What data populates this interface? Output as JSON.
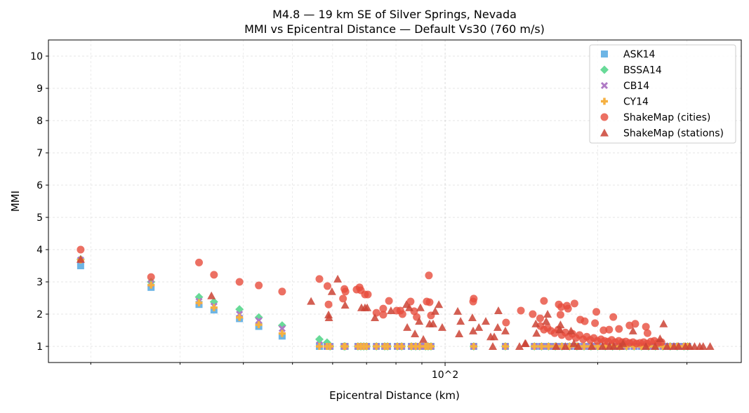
{
  "chart_data": {
    "type": "scatter",
    "title": "M4.8 — 19 km SE of Silver Springs, Nevada",
    "subtitle": "MMI vs Epicentral Distance — Default Vs30 (760 m/s)",
    "xlabel": "Epicentral Distance (km)",
    "ylabel": "MMI",
    "xscale": "log",
    "xlim": [
      16.5,
      384
    ],
    "ylim": [
      0.5,
      10.5
    ],
    "x_tick_labels": [
      {
        "value": 100,
        "label": "10^2"
      }
    ],
    "y_ticks": [
      1,
      2,
      3,
      4,
      5,
      6,
      7,
      8,
      9,
      10
    ],
    "grid": true,
    "legend_position": "top-right",
    "model_distances": [
      19.1,
      26.3,
      32.7,
      35.0,
      39.3,
      42.9,
      47.7,
      56.5,
      58.5,
      59.3,
      63.2,
      63.5,
      67.3,
      68.2,
      69.1,
      70.0,
      73.2,
      76.0,
      77.0,
      80.5,
      82.1,
      85.8,
      87.5,
      89.1,
      91.5,
      92.6,
      93.8,
      113.9,
      131.5,
      150,
      155,
      160,
      165,
      170,
      176,
      182,
      188,
      194,
      200,
      207,
      214,
      221,
      228,
      236,
      244,
      252,
      260,
      269,
      278,
      287,
      296,
      301
    ],
    "series": [
      {
        "name": "ASK14",
        "marker": "square",
        "color": "#5DADE2",
        "near_values": [
          3.5,
          2.83,
          2.3,
          2.13,
          1.86,
          1.62,
          1.32
        ],
        "far_value": 1.0
      },
      {
        "name": "BSSA14",
        "marker": "diamond",
        "color": "#58D68D",
        "near_values": [
          3.7,
          3.0,
          2.53,
          2.38,
          2.15,
          1.9,
          1.65,
          1.22,
          1.12
        ],
        "far_value": 1.0
      },
      {
        "name": "CB14",
        "marker": "x",
        "color": "#AF7AC5",
        "near_values": [
          3.68,
          2.95,
          2.4,
          2.25,
          2.0,
          1.8,
          1.55,
          1.05
        ],
        "far_value": 1.0
      },
      {
        "name": "CY14",
        "marker": "plus",
        "color": "#F5B041",
        "near_values": [
          3.68,
          2.9,
          2.35,
          2.2,
          1.9,
          1.67,
          1.4
        ],
        "far_value": 1.0
      },
      {
        "name": "ShakeMap (cities)",
        "marker": "circle",
        "color": "#E74C3C",
        "points": [
          [
            19.1,
            4.0
          ],
          [
            26.3,
            3.15
          ],
          [
            32.7,
            3.6
          ],
          [
            35.0,
            3.22
          ],
          [
            39.3,
            3.0
          ],
          [
            42.9,
            2.89
          ],
          [
            47.7,
            2.7
          ],
          [
            56.5,
            3.09
          ],
          [
            58.6,
            2.87
          ],
          [
            58.9,
            2.3
          ],
          [
            62.9,
            2.48
          ],
          [
            63.3,
            2.78
          ],
          [
            63.6,
            2.7
          ],
          [
            66.9,
            2.76
          ],
          [
            67.8,
            2.83
          ],
          [
            68.2,
            2.74
          ],
          [
            69.5,
            2.61
          ],
          [
            70.4,
            2.61
          ],
          [
            73.2,
            2.04
          ],
          [
            75.5,
            2.17
          ],
          [
            75.5,
            1.98
          ],
          [
            77.5,
            2.41
          ],
          [
            80.3,
            2.11
          ],
          [
            81.6,
            2.11
          ],
          [
            82.4,
            2.0
          ],
          [
            85.5,
            2.39
          ],
          [
            86.9,
            2.09
          ],
          [
            87.9,
            1.91
          ],
          [
            92.0,
            2.39
          ],
          [
            92.9,
            3.2
          ],
          [
            93.2,
            2.37
          ],
          [
            93.8,
            1.96
          ],
          [
            113.6,
            2.39
          ],
          [
            113.9,
            2.48
          ],
          [
            131.9,
            1.74
          ],
          [
            141.1,
            2.11
          ],
          [
            148.9,
            2.0
          ],
          [
            154.0,
            1.87
          ],
          [
            156.7,
            2.41
          ],
          [
            167.6,
            2.3
          ],
          [
            168.9,
            1.98
          ],
          [
            169.5,
            2.22
          ],
          [
            173.9,
            2.26
          ],
          [
            174.8,
            2.17
          ],
          [
            180.0,
            2.33
          ],
          [
            184.8,
            1.83
          ],
          [
            188.6,
            1.78
          ],
          [
            197.6,
            1.72
          ],
          [
            198.8,
            2.07
          ],
          [
            205.4,
            1.5
          ],
          [
            210.7,
            1.52
          ],
          [
            214.7,
            1.91
          ],
          [
            220.3,
            1.54
          ],
          [
            231.1,
            1.65
          ],
          [
            237.2,
            1.7
          ],
          [
            249.0,
            1.61
          ],
          [
            250.8,
            1.41
          ],
          [
            154.2,
            1.63
          ],
          [
            156.7,
            1.52
          ],
          [
            159.3,
            1.57
          ],
          [
            161.8,
            1.48
          ],
          [
            164.5,
            1.41
          ],
          [
            167.2,
            1.52
          ],
          [
            169.9,
            1.35
          ],
          [
            172.7,
            1.43
          ],
          [
            175.5,
            1.3
          ],
          [
            178.3,
            1.39
          ],
          [
            181.2,
            1.26
          ],
          [
            184.2,
            1.35
          ],
          [
            187.2,
            1.22
          ],
          [
            190.3,
            1.3
          ],
          [
            193.4,
            1.2
          ],
          [
            196.5,
            1.26
          ],
          [
            199.7,
            1.17
          ],
          [
            203.0,
            1.22
          ],
          [
            206.3,
            1.17
          ],
          [
            209.7,
            1.15
          ],
          [
            213.1,
            1.2
          ],
          [
            216.6,
            1.13
          ],
          [
            220.1,
            1.17
          ],
          [
            223.7,
            1.13
          ],
          [
            227.3,
            1.15
          ],
          [
            231.0,
            1.11
          ],
          [
            234.8,
            1.13
          ],
          [
            238.6,
            1.09
          ],
          [
            242.5,
            1.11
          ],
          [
            246.5,
            1.13
          ],
          [
            250.5,
            1.09
          ],
          [
            254.6,
            1.15
          ],
          [
            258.7,
            1.17
          ],
          [
            262.9,
            1.11
          ],
          [
            267.2,
            1.13
          ]
        ]
      },
      {
        "name": "ShakeMap (stations)",
        "marker": "triangle",
        "color": "#CB4335",
        "points": [
          [
            19.1,
            3.7
          ],
          [
            34.6,
            2.57
          ],
          [
            54.4,
            2.4
          ],
          [
            61.4,
            3.09
          ],
          [
            59.8,
            2.7
          ],
          [
            58.9,
            1.98
          ],
          [
            59.0,
            1.89
          ],
          [
            63.5,
            2.28
          ],
          [
            68.4,
            2.2
          ],
          [
            69.5,
            2.2
          ],
          [
            70.2,
            2.2
          ],
          [
            72.7,
            1.89
          ],
          [
            78.2,
            2.11
          ],
          [
            83.9,
            2.3
          ],
          [
            85.0,
            2.2
          ],
          [
            89.4,
            2.2
          ],
          [
            84.2,
            1.59
          ],
          [
            87.2,
            1.39
          ],
          [
            88.9,
            1.78
          ],
          [
            90.6,
            1.22
          ],
          [
            93.2,
            1.7
          ],
          [
            94.7,
            1.7
          ],
          [
            95.6,
            2.09
          ],
          [
            97.2,
            2.3
          ],
          [
            98.7,
            1.59
          ],
          [
            105.9,
            2.09
          ],
          [
            107.3,
            1.78
          ],
          [
            106.6,
            1.39
          ],
          [
            113.2,
            1.89
          ],
          [
            113.6,
            1.48
          ],
          [
            116.6,
            1.59
          ],
          [
            120.3,
            1.78
          ],
          [
            123.0,
            1.3
          ],
          [
            125.0,
            1.3
          ],
          [
            124.2,
            1.0
          ],
          [
            127.0,
            1.59
          ],
          [
            127.4,
            2.11
          ],
          [
            131.5,
            1.48
          ],
          [
            140.2,
            1.0
          ],
          [
            143.8,
            1.09
          ],
          [
            159.3,
            2.0
          ],
          [
            158.3,
            1.78
          ],
          [
            151.0,
            1.7
          ],
          [
            151.5,
            1.41
          ],
          [
            269.8,
            1.7
          ],
          [
            234.8,
            1.48
          ],
          [
            265.5,
            1.24
          ],
          [
            168.3,
            1.52
          ],
          [
            177.2,
            1.48
          ],
          [
            168.9,
            1.67
          ],
          [
            144.2,
            1.09
          ],
          [
            165.6,
            1.0
          ],
          [
            172.7,
            1.0
          ],
          [
            179.5,
            1.09
          ],
          [
            183.0,
            1.0
          ],
          [
            194.7,
            1.0
          ],
          [
            204.4,
            1.0
          ],
          [
            211.0,
            1.0
          ],
          [
            215.2,
            1.0
          ],
          [
            221.5,
            1.0
          ],
          [
            224.4,
            1.09
          ],
          [
            248.9,
            1.0
          ],
          [
            259.6,
            1.0
          ],
          [
            274.1,
            1.0
          ],
          [
            282.7,
            1.0
          ],
          [
            288.8,
            1.0
          ],
          [
            298.0,
            1.0
          ],
          [
            303.8,
            1.0
          ],
          [
            310.6,
            1.0
          ],
          [
            318.0,
            1.0
          ],
          [
            323.0,
            1.0
          ],
          [
            333.3,
            1.0
          ]
        ]
      }
    ]
  }
}
